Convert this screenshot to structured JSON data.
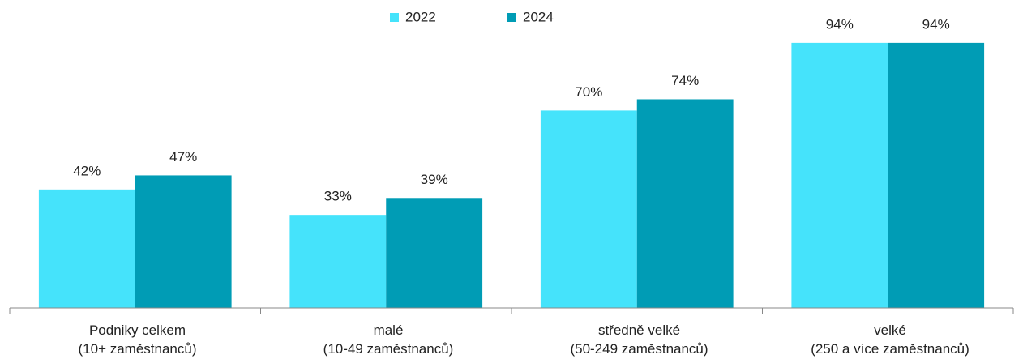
{
  "chart_data": {
    "type": "bar",
    "categories": [
      "Podniky celkem\n(10+ zaměstnanců)",
      "malé\n(10-49 zaměstnanců)",
      "středně velké\n(50-249 zaměstnanců)",
      "velké\n(250 a více zaměstnanců)"
    ],
    "series": [
      {
        "name": "2022",
        "color": "#45e3fb",
        "values": [
          42,
          33,
          70,
          94
        ],
        "value_labels": [
          "42%",
          "33%",
          "70%",
          "94%"
        ]
      },
      {
        "name": "2024",
        "color": "#009cb5",
        "values": [
          47,
          39,
          74,
          94
        ],
        "value_labels": [
          "47%",
          "39%",
          "74%",
          "94%"
        ]
      }
    ],
    "ylim": [
      0,
      100
    ],
    "legend": "top"
  }
}
